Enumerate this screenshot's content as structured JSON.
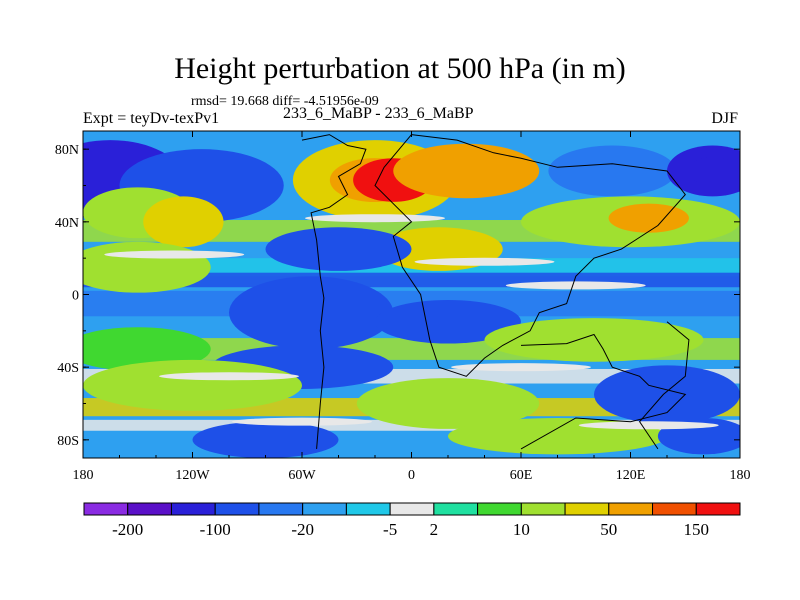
{
  "chart_data": {
    "type": "heatmap",
    "title": "Height perturbation at 500 hPa (in m)",
    "stats_text": "rmsd= 19.668 diff= -4.51956e-09",
    "left_label": "Expt = teyDv-texPv1",
    "center_label": "233_6_MaBP - 233_6_MaBP",
    "right_label": "DJF",
    "x_ticks": [
      "180",
      "120W",
      "60W",
      "0",
      "60E",
      "120E",
      "180"
    ],
    "x_tick_values": [
      -180,
      -120,
      -60,
      0,
      60,
      120,
      180
    ],
    "y_ticks": [
      "80N",
      "40N",
      "0",
      "40S",
      "80S"
    ],
    "y_tick_values": [
      80,
      40,
      0,
      -40,
      -80
    ],
    "xlim": [
      -180,
      180
    ],
    "ylim": [
      -90,
      90
    ],
    "colorbar": {
      "colors": [
        "#8a2be2",
        "#5a10c8",
        "#2a20d8",
        "#1e50e8",
        "#2878f0",
        "#2ea0f0",
        "#20c8e8",
        "#e8e8e8",
        "#20e0a0",
        "#40d830",
        "#a0e030",
        "#e0d000",
        "#f0a000",
        "#f05000",
        "#f01010"
      ],
      "labels": [
        "-200",
        "-100",
        "-20",
        "-5",
        "2",
        "10",
        "50",
        "150"
      ],
      "label_boundaries": [
        1,
        3,
        5,
        7,
        8,
        10,
        12,
        14
      ]
    },
    "field_blobs": [
      {
        "lon": -165,
        "lat": 63,
        "rx": 40,
        "ry": 22,
        "value": -60
      },
      {
        "lon": -115,
        "lat": 60,
        "rx": 45,
        "ry": 20,
        "value": -30
      },
      {
        "lon": -150,
        "lat": 45,
        "rx": 30,
        "ry": 14,
        "value": 18
      },
      {
        "lon": -125,
        "lat": 40,
        "rx": 22,
        "ry": 14,
        "value": 25
      },
      {
        "lon": -20,
        "lat": 63,
        "rx": 45,
        "ry": 22,
        "value": 45
      },
      {
        "lon": -10,
        "lat": 63,
        "rx": 22,
        "ry": 12,
        "value": 160
      },
      {
        "lon": 30,
        "lat": 68,
        "rx": 40,
        "ry": 15,
        "value": 55
      },
      {
        "lon": 110,
        "lat": 68,
        "rx": 35,
        "ry": 14,
        "value": -10
      },
      {
        "lon": 165,
        "lat": 68,
        "rx": 25,
        "ry": 14,
        "value": -60
      },
      {
        "lon": 120,
        "lat": 40,
        "rx": 60,
        "ry": 14,
        "value": 20
      },
      {
        "lon": 130,
        "lat": 42,
        "rx": 22,
        "ry": 8,
        "value": 55
      },
      {
        "lon": 15,
        "lat": 25,
        "rx": 35,
        "ry": 12,
        "value": 30
      },
      {
        "lon": -150,
        "lat": 15,
        "rx": 40,
        "ry": 14,
        "value": 15
      },
      {
        "lon": -40,
        "lat": 25,
        "rx": 40,
        "ry": 12,
        "value": -30
      },
      {
        "lon": -55,
        "lat": -10,
        "rx": 45,
        "ry": 20,
        "value": -35
      },
      {
        "lon": 20,
        "lat": -15,
        "rx": 40,
        "ry": 12,
        "value": -30
      },
      {
        "lon": 100,
        "lat": -25,
        "rx": 60,
        "ry": 12,
        "value": 20
      },
      {
        "lon": -150,
        "lat": -30,
        "rx": 40,
        "ry": 12,
        "value": 10
      },
      {
        "lon": -60,
        "lat": -40,
        "rx": 50,
        "ry": 12,
        "value": -35
      },
      {
        "lon": -120,
        "lat": -50,
        "rx": 60,
        "ry": 14,
        "value": 20
      },
      {
        "lon": 20,
        "lat": -60,
        "rx": 50,
        "ry": 14,
        "value": 15
      },
      {
        "lon": 140,
        "lat": -55,
        "rx": 40,
        "ry": 16,
        "value": -25
      },
      {
        "lon": -80,
        "lat": -80,
        "rx": 40,
        "ry": 10,
        "value": -40
      },
      {
        "lon": 80,
        "lat": -78,
        "rx": 60,
        "ry": 10,
        "value": 15
      },
      {
        "lon": 160,
        "lat": -78,
        "rx": 25,
        "ry": 10,
        "value": -30
      }
    ],
    "continent_outlines": [
      [
        [
          -60,
          85
        ],
        [
          -45,
          88
        ],
        [
          -35,
          82
        ],
        [
          -25,
          80
        ],
        [
          -28,
          72
        ],
        [
          -40,
          65
        ],
        [
          -35,
          55
        ],
        [
          -45,
          48
        ],
        [
          -55,
          45
        ],
        [
          -52,
          30
        ],
        [
          -50,
          10
        ],
        [
          -48,
          -2
        ],
        [
          -50,
          -20
        ],
        [
          -48,
          -40
        ],
        [
          -50,
          -60
        ],
        [
          -52,
          -85
        ]
      ],
      [
        [
          0,
          88
        ],
        [
          25,
          85
        ],
        [
          45,
          78
        ],
        [
          60,
          75
        ],
        [
          80,
          70
        ],
        [
          110,
          72
        ],
        [
          140,
          68
        ],
        [
          150,
          55
        ],
        [
          135,
          38
        ],
        [
          115,
          25
        ],
        [
          100,
          20
        ],
        [
          90,
          10
        ],
        [
          85,
          -5
        ],
        [
          70,
          -10
        ],
        [
          65,
          -20
        ],
        [
          50,
          -28
        ],
        [
          40,
          -35
        ],
        [
          30,
          -45
        ],
        [
          15,
          -40
        ],
        [
          10,
          -25
        ],
        [
          5,
          0
        ],
        [
          -5,
          15
        ],
        [
          -10,
          32
        ],
        [
          0,
          40
        ],
        [
          -10,
          50
        ],
        [
          -20,
          60
        ],
        [
          -15,
          70
        ],
        [
          0,
          88
        ]
      ],
      [
        [
          60,
          -28
        ],
        [
          85,
          -27
        ],
        [
          100,
          -22
        ],
        [
          105,
          -30
        ],
        [
          110,
          -40
        ],
        [
          125,
          -45
        ],
        [
          130,
          -50
        ],
        [
          150,
          -55
        ],
        [
          140,
          -65
        ],
        [
          120,
          -70
        ],
        [
          90,
          -68
        ],
        [
          60,
          -85
        ]
      ],
      [
        [
          140,
          -15
        ],
        [
          152,
          -25
        ],
        [
          150,
          -45
        ],
        [
          138,
          -55
        ],
        [
          125,
          -70
        ],
        [
          135,
          -85
        ]
      ]
    ]
  }
}
